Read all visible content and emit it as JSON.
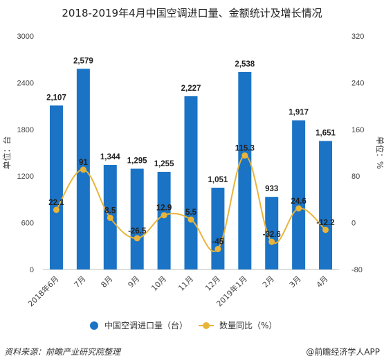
{
  "title": "2018-2019年4月中国空调进口量、金额统计及增长情况",
  "footer": {
    "source": "资料来源：前瞻产业研究院整理",
    "brand": "@前瞻经济学人APP"
  },
  "colors": {
    "bar": "#1a73c5",
    "line": "#e9b43a",
    "grid": "#e6e6e6"
  },
  "chart_data": {
    "type": "bar",
    "title": "2018-2019年4月中国空调进口量、金额统计及增长情况",
    "categories": [
      "2018年6月",
      "7月",
      "8月",
      "9月",
      "10月",
      "11月",
      "12月",
      "2019年1月",
      "2月",
      "3月",
      "4月"
    ],
    "series": [
      {
        "name": "中国空调进口量（台）",
        "type": "bar",
        "axis": "left",
        "values": [
          2107,
          2579,
          1344,
          1295,
          1255,
          2227,
          1051,
          2538,
          933,
          1917,
          1651
        ],
        "labels": [
          "2,107",
          "2,579",
          "1,344",
          "1,295",
          "1,255",
          "2,227",
          "1,051",
          "2,538",
          "933",
          "1,917",
          "1,651"
        ]
      },
      {
        "name": "数量同比（%）",
        "type": "line",
        "axis": "right",
        "values": [
          22.1,
          91,
          8.5,
          -26.5,
          12.9,
          5.5,
          -45,
          115.3,
          -32.6,
          24.6,
          -12.2
        ],
        "labels": [
          "22.1",
          "91",
          "8.5",
          "-26.5",
          "12.9",
          "5.5",
          "-45",
          "115.3",
          "-32.6",
          "24.6",
          "-12.2"
        ]
      }
    ],
    "ylabel_left": "单位：台",
    "ylabel_right": "单位：%",
    "ylim_left": [
      0,
      3000
    ],
    "yticks_left": [
      "0",
      "600",
      "1200",
      "1800",
      "2400",
      "3000"
    ],
    "ylim_right": [
      -80,
      320
    ],
    "yticks_right": [
      "-80",
      "0",
      "80",
      "160",
      "240",
      "320"
    ],
    "grid": false,
    "legend_position": "bottom"
  }
}
